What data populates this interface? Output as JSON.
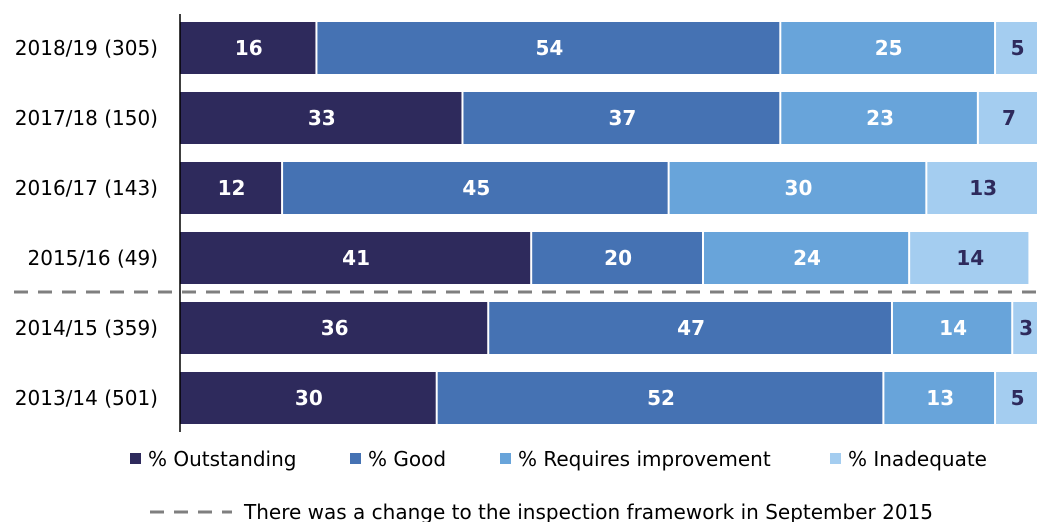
{
  "chart_data": {
    "type": "bar",
    "orientation": "horizontal",
    "stacked": true,
    "categories": [
      "2018/19 (305)",
      "2017/18 (150)",
      "2016/17 (143)",
      "2015/16 (49)",
      "2014/15 (359)",
      "2013/14 (501)"
    ],
    "series": [
      {
        "name": "% Outstanding",
        "color": "#2e2a5c",
        "label_color": "#ffffff",
        "values": [
          16,
          33,
          12,
          41,
          36,
          30
        ]
      },
      {
        "name": "% Good",
        "color": "#4572b3",
        "label_color": "#ffffff",
        "values": [
          54,
          37,
          45,
          20,
          47,
          52
        ]
      },
      {
        "name": "% Requires improvement",
        "color": "#68a4da",
        "label_color": "#ffffff",
        "values": [
          25,
          23,
          30,
          24,
          14,
          13
        ]
      },
      {
        "name": "% Inadequate",
        "color": "#a4cdf0",
        "label_color": "#2e2a5c",
        "values": [
          5,
          7,
          13,
          14,
          3,
          5
        ]
      }
    ],
    "xlim": [
      0,
      100
    ],
    "grid": false,
    "legend_position": "bottom",
    "divider_after_category": "2015/16 (49)",
    "note": "There was a change to the inspection framework in September 2015"
  }
}
